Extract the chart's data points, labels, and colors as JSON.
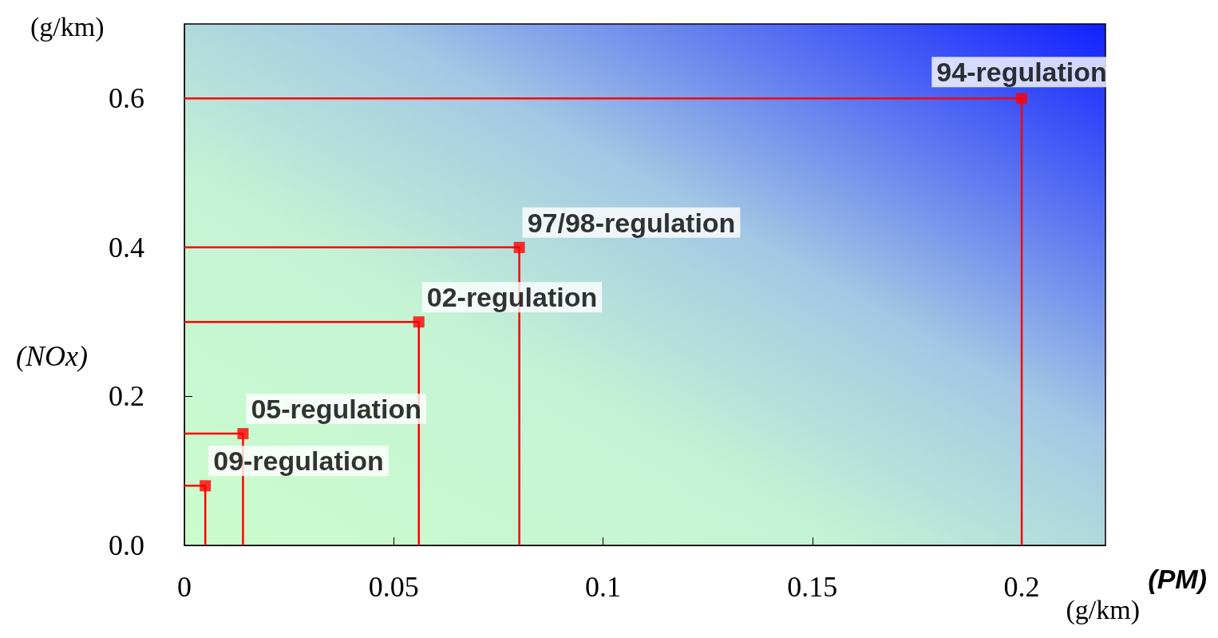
{
  "chart_data": {
    "type": "scatter",
    "xlabel": "(PM)",
    "ylabel": "(NOx)",
    "annotations": [
      "(g/km)",
      "(g/km)"
    ],
    "xlim": [
      0,
      0.22
    ],
    "xticks": [
      0,
      0.05,
      0.1,
      0.15,
      0.2
    ],
    "ylim": [
      0,
      0.7
    ],
    "yticks": [
      {
        "value": 0,
        "label": "0.0"
      },
      0.2,
      0.4,
      0.6
    ],
    "marker": "square",
    "grid": false,
    "legend": false,
    "series": [
      {
        "type": "line",
        "marker": "none",
        "color": "#ff0000",
        "x": [
          0,
          0.2,
          0.2
        ],
        "values": [
          0.6,
          0.6,
          0
        ]
      },
      {
        "type": "line",
        "marker": "none",
        "color": "#ff0000",
        "x": [
          0,
          0.08,
          0.08
        ],
        "values": [
          0.4,
          0.4,
          0
        ]
      },
      {
        "type": "line",
        "marker": "none",
        "color": "#ff0000",
        "x": [
          0,
          0.056,
          0.056
        ],
        "values": [
          0.3,
          0.3,
          0
        ]
      },
      {
        "type": "line",
        "marker": "none",
        "color": "#ff0000",
        "x": [
          0,
          0.014,
          0.014
        ],
        "values": [
          0.15,
          0.15,
          0
        ]
      },
      {
        "type": "line",
        "marker": "none",
        "color": "#ff0000",
        "x": [
          0,
          0.005,
          0.005
        ],
        "values": [
          0.08,
          0.08,
          0
        ]
      },
      {
        "name": "94-regulation",
        "color": "#ff0000",
        "x": [
          0.2
        ],
        "values": [
          0.6
        ]
      },
      {
        "name": "97/98-regulation",
        "color": "#ff0000",
        "x": [
          0.08
        ],
        "values": [
          0.4
        ]
      },
      {
        "name": "02-regulation",
        "color": "#ff0000",
        "x": [
          0.056
        ],
        "values": [
          0.3
        ]
      },
      {
        "name": "05-regulation",
        "color": "#ff0000",
        "x": [
          0.014
        ],
        "values": [
          0.15
        ]
      },
      {
        "name": "09-regulation",
        "color": "#ff0000",
        "x": [
          0.005
        ],
        "values": [
          0.08
        ]
      }
    ]
  }
}
